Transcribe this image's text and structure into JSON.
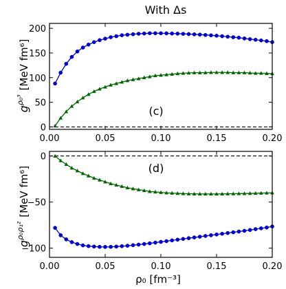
{
  "title": "With Δs",
  "x_axis_label": "ρ₀ [fm⁻³]",
  "colors": {
    "blue": "#0000cc",
    "green": "#006400",
    "axis": "#000000"
  },
  "chart_data": [
    {
      "type": "line",
      "panel_label": "(c)",
      "ylabel_main": "g",
      "ylabel_super": "ρ₀³",
      "ylabel_unit": "[MeV fm⁶]",
      "xlim": [
        0.0,
        0.2
      ],
      "ylim": [
        -5,
        210
      ],
      "x_ticks": [
        0.0,
        0.05,
        0.1,
        0.15,
        0.2
      ],
      "x_tick_labels": [
        "0.00",
        "0.05",
        "0.10",
        "0.15",
        "0.20"
      ],
      "y_ticks": [
        0,
        50,
        100,
        150,
        200
      ],
      "y_tick_labels": [
        "0",
        "50",
        "100",
        "150",
        "200"
      ],
      "reference_line": 0,
      "series": [
        {
          "color": "#0000cc",
          "marker": "circle",
          "x": [
            0.005,
            0.01,
            0.015,
            0.02,
            0.025,
            0.03,
            0.035,
            0.04,
            0.045,
            0.05,
            0.055,
            0.06,
            0.065,
            0.07,
            0.075,
            0.08,
            0.085,
            0.09,
            0.095,
            0.1,
            0.105,
            0.11,
            0.115,
            0.12,
            0.125,
            0.13,
            0.135,
            0.14,
            0.145,
            0.15,
            0.155,
            0.16,
            0.165,
            0.17,
            0.175,
            0.18,
            0.185,
            0.19,
            0.195,
            0.2
          ],
          "y": [
            88,
            110,
            128,
            142,
            153,
            161,
            167,
            172,
            176,
            179,
            182,
            184,
            186,
            187,
            188,
            189,
            189.5,
            190,
            190,
            190,
            189.8,
            189.5,
            189.2,
            188.8,
            188.3,
            187.8,
            187.2,
            186.5,
            185.8,
            185,
            184,
            183,
            182,
            181,
            179.5,
            178,
            176.8,
            175.5,
            174,
            172
          ]
        },
        {
          "color": "#006400",
          "marker": "triangle",
          "x": [
            0.005,
            0.01,
            0.015,
            0.02,
            0.025,
            0.03,
            0.035,
            0.04,
            0.045,
            0.05,
            0.055,
            0.06,
            0.065,
            0.07,
            0.075,
            0.08,
            0.085,
            0.09,
            0.095,
            0.1,
            0.105,
            0.11,
            0.115,
            0.12,
            0.125,
            0.13,
            0.135,
            0.14,
            0.145,
            0.15,
            0.155,
            0.16,
            0.165,
            0.17,
            0.175,
            0.18,
            0.185,
            0.19,
            0.195,
            0.2
          ],
          "y": [
            2,
            18,
            31,
            42,
            51,
            59,
            66,
            72,
            77,
            81,
            85,
            88,
            91,
            94,
            96,
            98,
            100,
            102,
            104,
            105,
            106,
            107,
            108,
            109,
            109.5,
            110,
            110,
            110,
            110.5,
            110.5,
            110.5,
            110.5,
            110,
            110,
            110,
            109.5,
            109,
            109,
            108.5,
            108
          ]
        }
      ]
    },
    {
      "type": "line",
      "panel_label": "(d)",
      "ylabel_main": "g",
      "ylabel_super": "ρ₀ρ₁²",
      "ylabel_unit": "[MeV fm⁶]",
      "xlim": [
        0.0,
        0.2
      ],
      "ylim": [
        -110,
        5
      ],
      "x_ticks": [
        0.0,
        0.05,
        0.1,
        0.15,
        0.2
      ],
      "x_tick_labels": [
        "0.00",
        "0.05",
        "0.10",
        "0.15",
        "0.20"
      ],
      "y_ticks": [
        0,
        -50,
        -100
      ],
      "y_tick_labels": [
        "0",
        "−50",
        "−100"
      ],
      "reference_line": 0,
      "series": [
        {
          "color": "#006400",
          "marker": "triangle",
          "x": [
            0.005,
            0.01,
            0.015,
            0.02,
            0.025,
            0.03,
            0.035,
            0.04,
            0.045,
            0.05,
            0.055,
            0.06,
            0.065,
            0.07,
            0.075,
            0.08,
            0.085,
            0.09,
            0.095,
            0.1,
            0.105,
            0.11,
            0.115,
            0.12,
            0.125,
            0.13,
            0.135,
            0.14,
            0.145,
            0.15,
            0.155,
            0.16,
            0.165,
            0.17,
            0.175,
            0.18,
            0.185,
            0.19,
            0.195,
            0.2
          ],
          "y": [
            0,
            -5,
            -9,
            -13,
            -16,
            -19,
            -21.5,
            -24,
            -26,
            -28,
            -30,
            -31.5,
            -33,
            -34.5,
            -35.5,
            -36.5,
            -37.5,
            -38.5,
            -39,
            -39.5,
            -40,
            -40.3,
            -40.6,
            -40.8,
            -41,
            -41.1,
            -41.2,
            -41.2,
            -41.2,
            -41.2,
            -41.1,
            -41,
            -40.9,
            -40.8,
            -40.7,
            -40.6,
            -40.5,
            -40.3,
            -40.1,
            -40
          ]
        },
        {
          "color": "#0000cc",
          "marker": "circle",
          "x": [
            0.005,
            0.01,
            0.015,
            0.02,
            0.025,
            0.03,
            0.035,
            0.04,
            0.045,
            0.05,
            0.055,
            0.06,
            0.065,
            0.07,
            0.075,
            0.08,
            0.085,
            0.09,
            0.095,
            0.1,
            0.105,
            0.11,
            0.115,
            0.12,
            0.125,
            0.13,
            0.135,
            0.14,
            0.145,
            0.15,
            0.155,
            0.16,
            0.165,
            0.17,
            0.175,
            0.18,
            0.185,
            0.19,
            0.195,
            0.2
          ],
          "y": [
            -78,
            -86,
            -90.5,
            -93.5,
            -95.5,
            -97,
            -97.8,
            -98.3,
            -98.6,
            -98.7,
            -98.6,
            -98.3,
            -97.9,
            -97.4,
            -96.8,
            -96.2,
            -95.5,
            -94.8,
            -94,
            -93.2,
            -92.4,
            -91.6,
            -90.8,
            -90,
            -89.2,
            -88.4,
            -87.6,
            -86.8,
            -86,
            -85.2,
            -84.4,
            -83.6,
            -82.8,
            -82,
            -81.2,
            -80.3,
            -79.4,
            -78.5,
            -77.6,
            -76.5
          ]
        }
      ]
    }
  ]
}
